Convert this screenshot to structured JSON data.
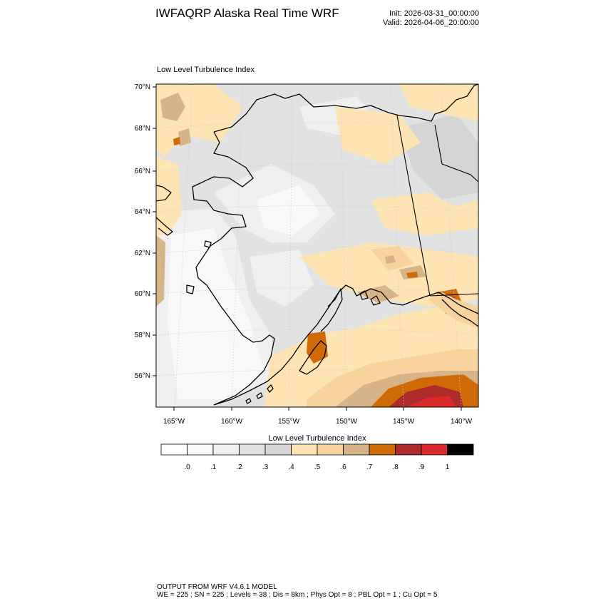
{
  "header": {
    "title": "IWFAQRP Alaska Real Time WRF",
    "init": "Init: 2026-03-31_00:00:00",
    "valid": "Valid: 2026-04-06_20:00:00"
  },
  "panel": {
    "title": "Low Level Turbulence Index",
    "lat_labels": [
      "70°N",
      "68°N",
      "66°N",
      "64°N",
      "62°N",
      "60°N",
      "58°N",
      "56°N"
    ],
    "lon_labels": [
      "165°W",
      "160°W",
      "155°W",
      "150°W",
      "145°W",
      "140°W"
    ]
  },
  "colorbar": {
    "title": "Low Level Turbulence Index",
    "colors": [
      "#ffffff",
      "#f8f8f8",
      "#efefef",
      "#e2e2e2",
      "#d5d5d5",
      "#ffe4b3",
      "#f8d39e",
      "#d6b488",
      "#d06a06",
      "#ae2b2b",
      "#dc2a2a",
      "#000000"
    ],
    "tick_labels": [
      ".0",
      ".1",
      ".2",
      ".3",
      ".4",
      ".5",
      ".6",
      ".7",
      ".8",
      ".9",
      "1"
    ]
  },
  "footer": {
    "line1": "OUTPUT FROM WRF V4.6.1 MODEL",
    "line2": "WE = 225 ; SN = 225 ; Levels = 38 ; Dis = 8km ; Phys Opt = 8 ; PBL Opt = 1 ; Cu Opt = 5"
  }
}
